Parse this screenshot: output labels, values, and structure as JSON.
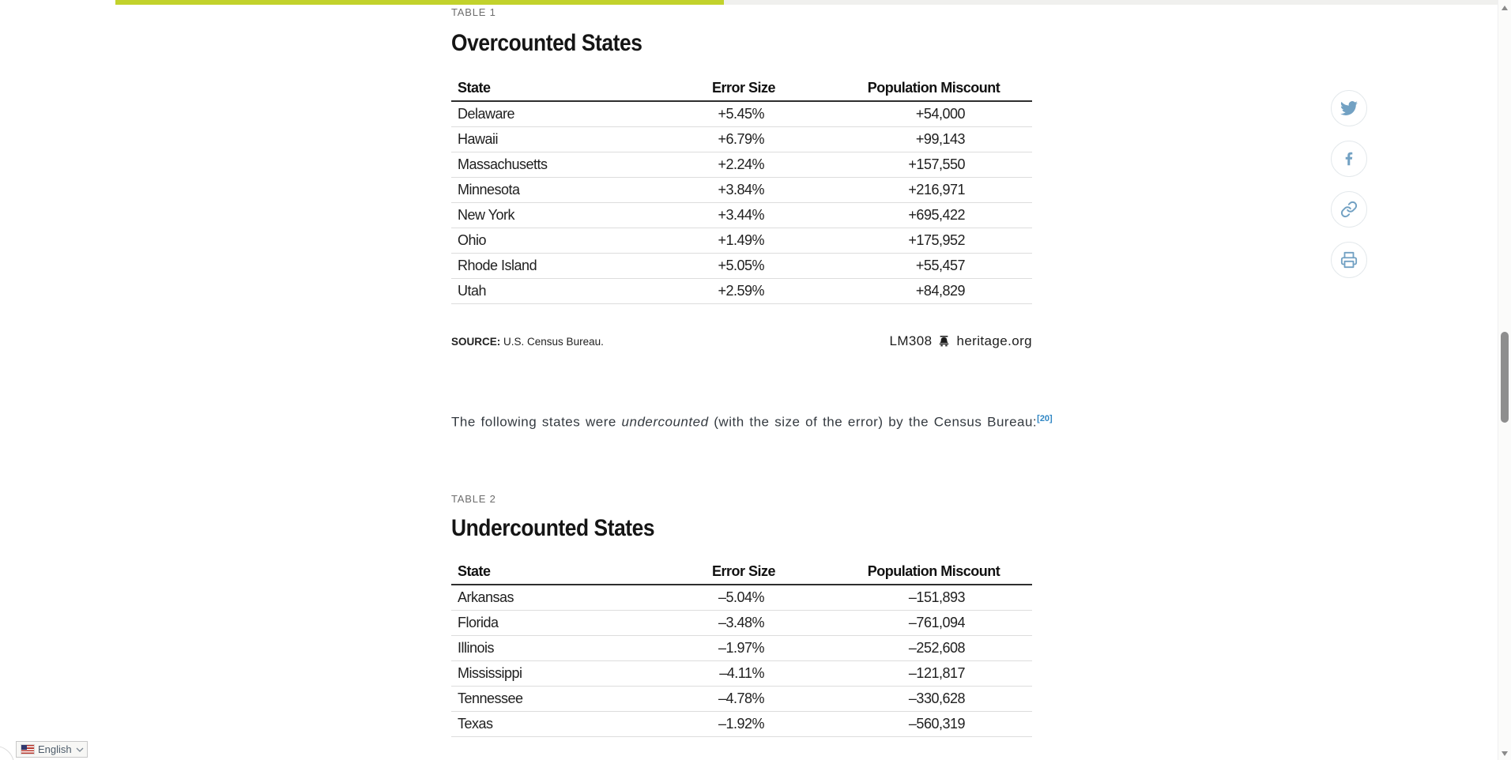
{
  "progress": {
    "accent_color": "#c2d22c",
    "track_color": "#f0f0ee"
  },
  "article": {
    "tables": [
      {
        "tag": "TABLE 1",
        "title": "Overcounted States",
        "columns": [
          "State",
          "Error Size",
          "Population Miscount"
        ],
        "rows": [
          [
            "Delaware",
            "+5.45%",
            "+54,000"
          ],
          [
            "Hawaii",
            "+6.79%",
            "+99,143"
          ],
          [
            "Massachusetts",
            "+2.24%",
            "+157,550"
          ],
          [
            "Minnesota",
            "+3.84%",
            "+216,971"
          ],
          [
            "New York",
            "+3.44%",
            "+695,422"
          ],
          [
            "Ohio",
            "+1.49%",
            "+175,952"
          ],
          [
            "Rhode Island",
            "+5.05%",
            "+55,457"
          ],
          [
            "Utah",
            "+2.59%",
            "+84,829"
          ]
        ],
        "source_label": "SOURCE:",
        "source_text": "U.S. Census Bureau.",
        "credit_code": "LM308",
        "credit_site": "heritage.org"
      },
      {
        "tag": "TABLE 2",
        "title": "Undercounted States",
        "columns": [
          "State",
          "Error Size",
          "Population Miscount"
        ],
        "rows": [
          [
            "Arkansas",
            "–5.04%",
            "–151,893"
          ],
          [
            "Florida",
            "–3.48%",
            "–761,094"
          ],
          [
            "Illinois",
            "–1.97%",
            "–252,608"
          ],
          [
            "Mississippi",
            "–4.11%",
            "–121,817"
          ],
          [
            "Tennessee",
            "–4.78%",
            "–330,628"
          ],
          [
            "Texas",
            "–1.92%",
            "–560,319"
          ]
        ]
      }
    ],
    "paragraph": {
      "prefix": "The following states were ",
      "emphasis": "undercounted",
      "suffix": " (with the size of the error) by the Census Bureau:",
      "footnote": "[20]",
      "footnote_color": "#2f86c4"
    }
  },
  "share": {
    "icon_color": "#72a1c3",
    "buttons": [
      {
        "name": "twitter"
      },
      {
        "name": "facebook"
      },
      {
        "name": "copy-link"
      },
      {
        "name": "print"
      }
    ]
  },
  "language_selector": {
    "label": "English",
    "flag": "us-flag"
  }
}
